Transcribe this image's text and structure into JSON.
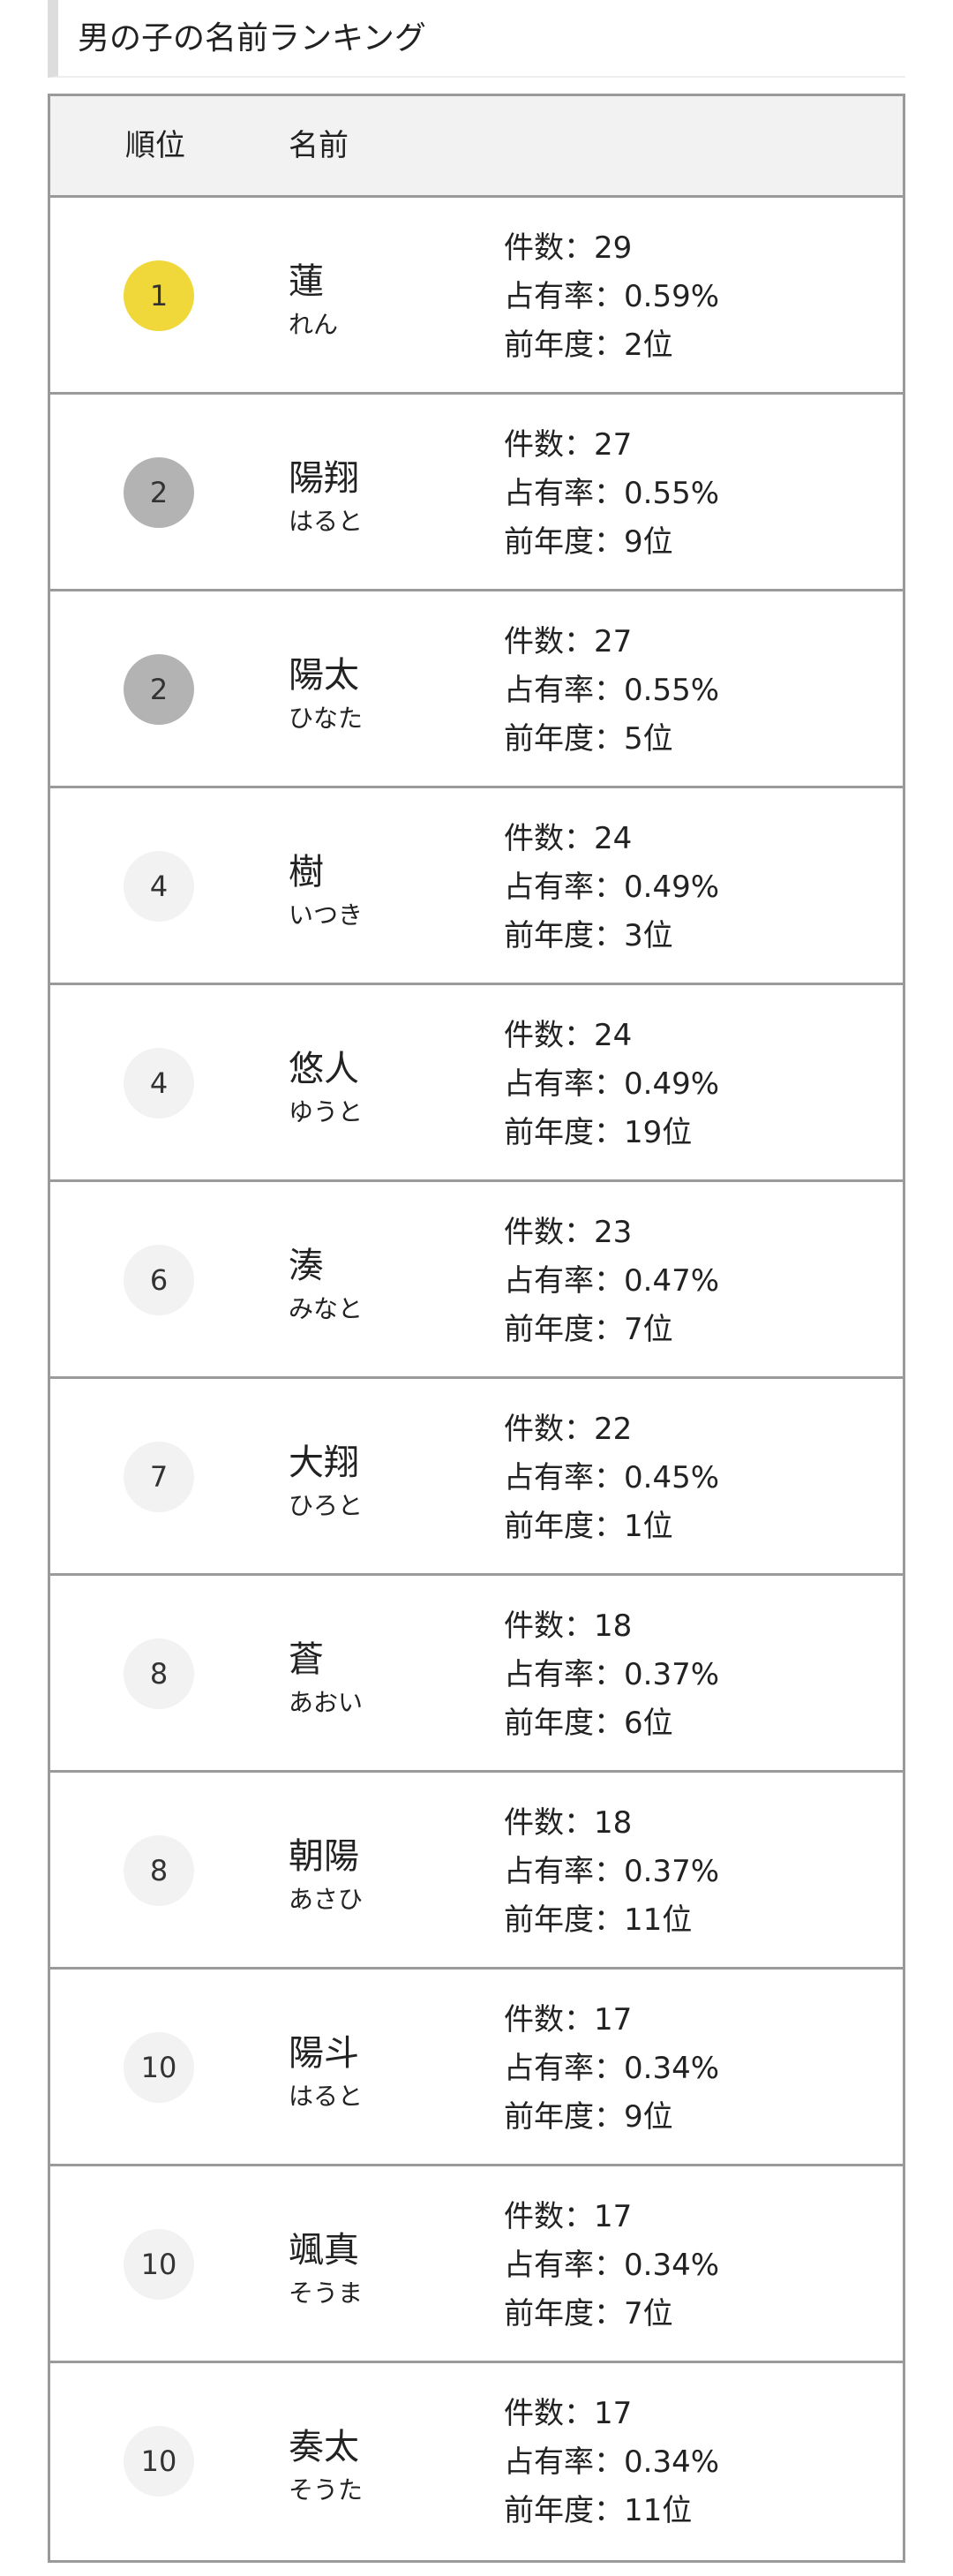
{
  "header": {
    "title": "男の子の名前ランキング"
  },
  "table": {
    "columns": [
      "順位",
      "名前"
    ],
    "rows": [
      {
        "rank": "1",
        "badge_color": "#f0d83a",
        "name": "蓮",
        "reading": "れん",
        "details": [
          "件数：29",
          "占有率：0.59%",
          "前年度：2位"
        ]
      },
      {
        "rank": "2",
        "badge_color": "#b3b3b3",
        "name": "陽翔",
        "reading": "はると",
        "details": [
          "件数：27",
          "占有率：0.55%",
          "前年度：9位"
        ]
      },
      {
        "rank": "2",
        "badge_color": "#b3b3b3",
        "name": "陽太",
        "reading": "ひなた",
        "details": [
          "件数：27",
          "占有率：0.55%",
          "前年度：5位"
        ]
      },
      {
        "rank": "4",
        "badge_color": "#f2f2f2",
        "name": "樹",
        "reading": "いつき",
        "details": [
          "件数：24",
          "占有率：0.49%",
          "前年度：3位"
        ]
      },
      {
        "rank": "4",
        "badge_color": "#f2f2f2",
        "name": "悠人",
        "reading": "ゆうと",
        "details": [
          "件数：24",
          "占有率：0.49%",
          "前年度：19位"
        ]
      },
      {
        "rank": "6",
        "badge_color": "#f2f2f2",
        "name": "湊",
        "reading": "みなと",
        "details": [
          "件数：23",
          "占有率：0.47%",
          "前年度：7位"
        ]
      },
      {
        "rank": "7",
        "badge_color": "#f2f2f2",
        "name": "大翔",
        "reading": "ひろと",
        "details": [
          "件数：22",
          "占有率：0.45%",
          "前年度：1位"
        ]
      },
      {
        "rank": "8",
        "badge_color": "#f2f2f2",
        "name": "蒼",
        "reading": "あおい",
        "details": [
          "件数：18",
          "占有率：0.37%",
          "前年度：6位"
        ]
      },
      {
        "rank": "8",
        "badge_color": "#f2f2f2",
        "name": "朝陽",
        "reading": "あさひ",
        "details": [
          "件数：18",
          "占有率：0.37%",
          "前年度：11位"
        ]
      },
      {
        "rank": "10",
        "badge_color": "#f2f2f2",
        "name": "陽斗",
        "reading": "はると",
        "details": [
          "件数：17",
          "占有率：0.34%",
          "前年度：9位"
        ]
      },
      {
        "rank": "10",
        "badge_color": "#f2f2f2",
        "name": "颯真",
        "reading": "そうま",
        "details": [
          "件数：17",
          "占有率：0.34%",
          "前年度：7位"
        ]
      },
      {
        "rank": "10",
        "badge_color": "#f2f2f2",
        "name": "奏太",
        "reading": "そうた",
        "details": [
          "件数：17",
          "占有率：0.34%",
          "前年度：11位"
        ]
      }
    ]
  }
}
